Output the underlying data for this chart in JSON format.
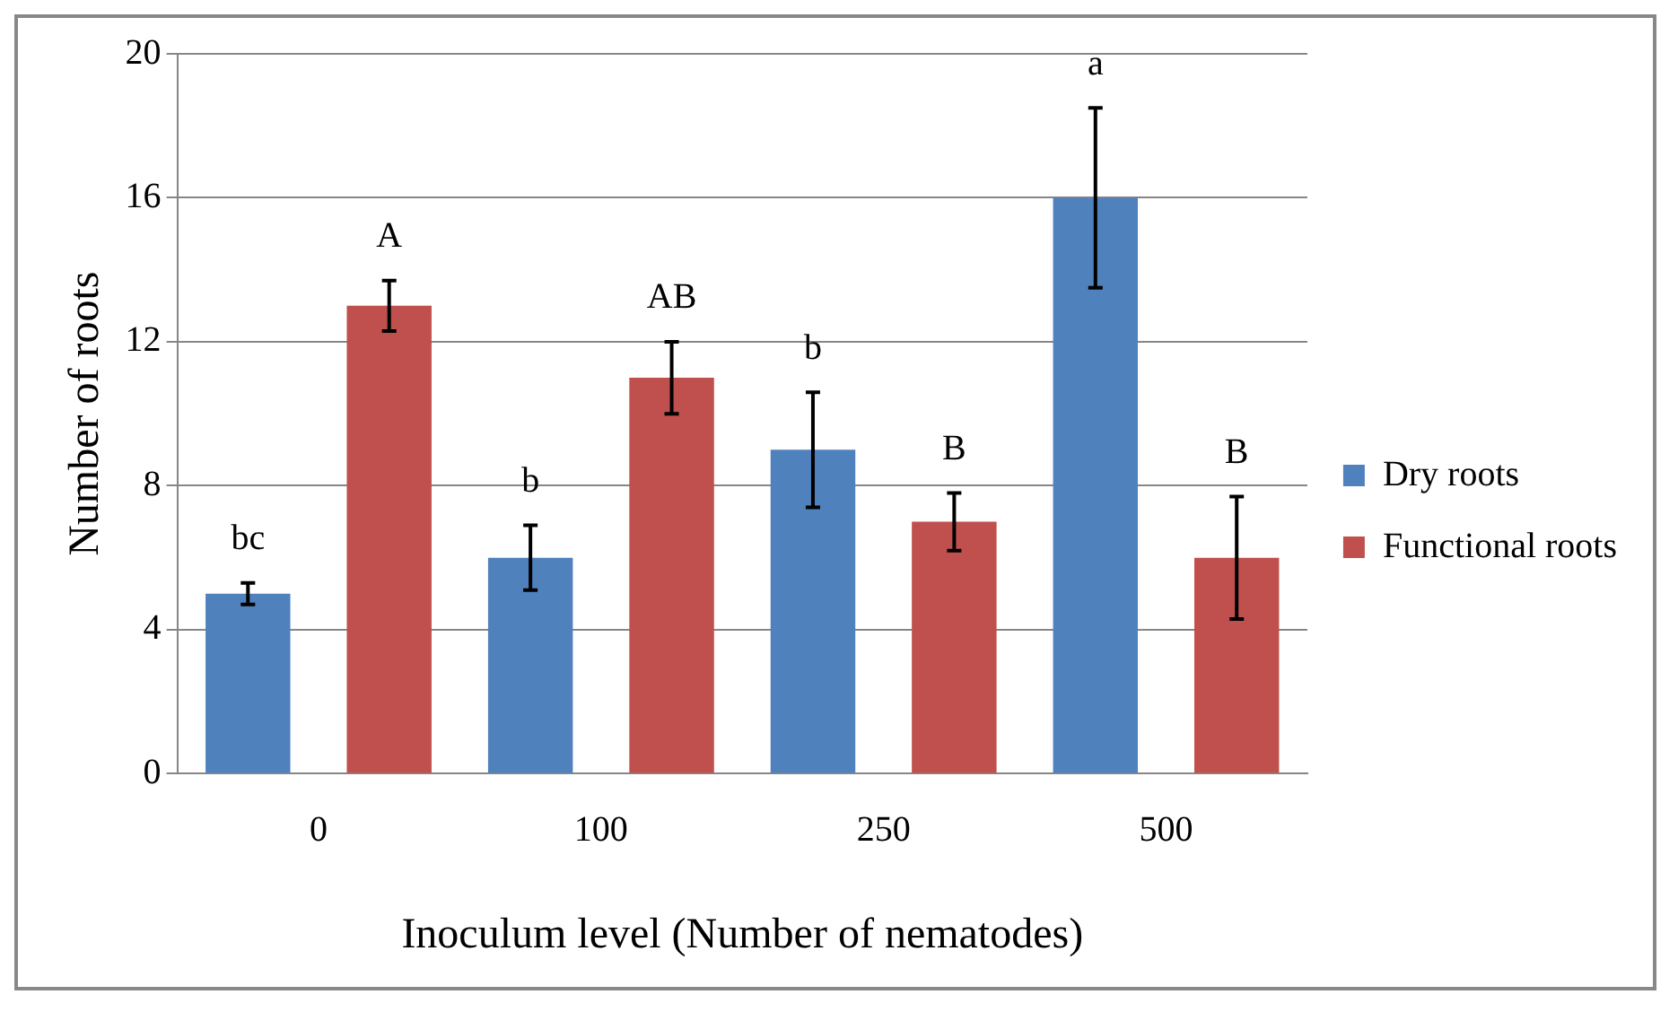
{
  "chart_data": {
    "type": "bar",
    "xlabel": "Inoculum level (Number of nematodes)",
    "ylabel": "Number of roots",
    "categories": [
      "0",
      "100",
      "250",
      "500"
    ],
    "series": [
      {
        "name": "Dry roots",
        "color": "#4f81bd",
        "values": [
          5,
          6,
          9,
          16
        ],
        "errors": [
          0.3,
          0.9,
          1.6,
          2.5
        ]
      },
      {
        "name": "Functional roots",
        "color": "#c0504d",
        "values": [
          13,
          11,
          7,
          6
        ],
        "errors": [
          0.7,
          1.0,
          0.8,
          1.7
        ]
      }
    ],
    "ylim": [
      0,
      20
    ],
    "yticks": [
      0,
      4,
      8,
      12,
      16,
      20
    ],
    "grid": "y",
    "legend": "right",
    "annotations": [
      "bc",
      "A",
      "b",
      "AB",
      "b",
      "B",
      "a",
      "B"
    ]
  }
}
